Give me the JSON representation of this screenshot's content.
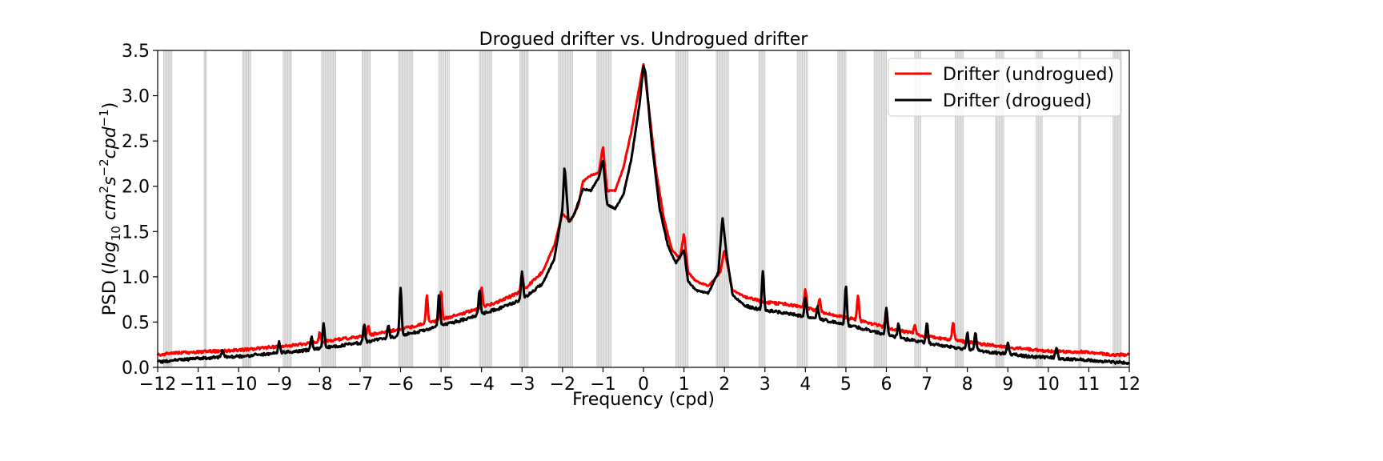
{
  "chart_data": {
    "type": "line",
    "title": "Drogued drifter vs. Undrogued drifter",
    "xlabel": "Frequency (cpd)",
    "ylabel_parts": {
      "pre": "PSD (",
      "log": "log",
      "sub10": "10",
      "cm": " cm",
      "sup2": "2",
      "s": "s",
      "supm2": "−2",
      "cpd": "cpd",
      "supm1": "−1",
      "post": ")"
    },
    "xlim": [
      -12,
      12
    ],
    "ylim": [
      0,
      3.5
    ],
    "xticks": [
      -12,
      -11,
      -10,
      -9,
      -8,
      -7,
      -6,
      -5,
      -4,
      -3,
      -2,
      -1,
      0,
      1,
      2,
      3,
      4,
      5,
      6,
      7,
      8,
      9,
      10,
      11,
      12
    ],
    "xtick_labels": [
      "−12",
      "−11",
      "−10",
      "−9",
      "−8",
      "−7",
      "−6",
      "−5",
      "−4",
      "−3",
      "−2",
      "−1",
      "0",
      "1",
      "2",
      "3",
      "4",
      "5",
      "6",
      "7",
      "8",
      "9",
      "10",
      "11",
      "12"
    ],
    "yticks": [
      0.0,
      0.5,
      1.0,
      1.5,
      2.0,
      2.5,
      3.0,
      3.5
    ],
    "ytick_labels": [
      "0.0",
      "0.5",
      "1.0",
      "1.5",
      "2.0",
      "2.5",
      "3.0",
      "3.5"
    ],
    "legend_position": "top-right",
    "series": [
      {
        "name": "Drifter (undrogued)",
        "color": "#ff0000",
        "base": {
          "floor": 0.13,
          "w_mid": 0.05,
          "w_far": 0.02,
          "hw_far": 2.2,
          "near": [
            [
              0.0,
              3.25,
              0.13
            ]
          ],
          "spikes": [
            [
              -1.0,
              0.2,
              0.04
            ],
            [
              1.0,
              0.35,
              0.04
            ],
            [
              2.0,
              0.3,
              0.04
            ],
            [
              -2.0,
              0.12,
              0.05
            ]
          ],
          "plateau": [
            -1.35,
            0.12,
            0.5
          ]
        },
        "points": [
          [
            -12.0,
            0.14
          ],
          [
            -11.5,
            0.16
          ],
          [
            -11.0,
            0.17
          ],
          [
            -10.5,
            0.18
          ],
          [
            -10.0,
            0.19
          ],
          [
            -9.5,
            0.21
          ],
          [
            -9.0,
            0.23
          ],
          [
            -8.5,
            0.25
          ],
          [
            -8.0,
            0.28
          ],
          [
            -7.5,
            0.31
          ],
          [
            -7.0,
            0.34
          ],
          [
            -6.5,
            0.38
          ],
          [
            -6.0,
            0.42
          ],
          [
            -5.5,
            0.47
          ],
          [
            -5.0,
            0.53
          ],
          [
            -4.5,
            0.59
          ],
          [
            -4.0,
            0.66
          ],
          [
            -3.5,
            0.74
          ],
          [
            -3.0,
            0.84
          ],
          [
            -2.5,
            1.05
          ],
          [
            -2.2,
            1.35
          ],
          [
            -2.0,
            1.7
          ],
          [
            -1.9,
            1.65
          ],
          [
            -1.8,
            1.62
          ],
          [
            -1.6,
            1.8
          ],
          [
            -1.5,
            2.05
          ],
          [
            -1.3,
            2.12
          ],
          [
            -1.1,
            2.15
          ],
          [
            -1.0,
            2.45
          ],
          [
            -0.9,
            1.95
          ],
          [
            -0.7,
            1.95
          ],
          [
            -0.5,
            2.2
          ],
          [
            -0.3,
            2.6
          ],
          [
            -0.1,
            3.1
          ],
          [
            0.0,
            3.35
          ],
          [
            0.1,
            3.0
          ],
          [
            0.3,
            2.2
          ],
          [
            0.5,
            1.65
          ],
          [
            0.7,
            1.3
          ],
          [
            0.9,
            1.2
          ],
          [
            1.0,
            1.48
          ],
          [
            1.1,
            1.05
          ],
          [
            1.3,
            0.95
          ],
          [
            1.6,
            0.9
          ],
          [
            1.9,
            1.05
          ],
          [
            2.0,
            1.3
          ],
          [
            2.2,
            0.85
          ],
          [
            2.5,
            0.78
          ],
          [
            3.0,
            0.72
          ],
          [
            3.5,
            0.7
          ],
          [
            4.0,
            0.66
          ],
          [
            4.5,
            0.6
          ],
          [
            5.0,
            0.55
          ],
          [
            5.5,
            0.5
          ],
          [
            6.0,
            0.44
          ],
          [
            6.5,
            0.39
          ],
          [
            7.0,
            0.34
          ],
          [
            7.5,
            0.31
          ],
          [
            8.0,
            0.28
          ],
          [
            8.5,
            0.25
          ],
          [
            9.0,
            0.22
          ],
          [
            9.5,
            0.2
          ],
          [
            10.0,
            0.18
          ],
          [
            10.5,
            0.17
          ],
          [
            11.0,
            0.17
          ],
          [
            11.5,
            0.14
          ],
          [
            12.0,
            0.14
          ]
        ]
      },
      {
        "name": "Drifter (drogued)",
        "color": "#000000",
        "points": [
          [
            -12.0,
            0.06
          ],
          [
            -11.5,
            0.08
          ],
          [
            -11.0,
            0.1
          ],
          [
            -10.5,
            0.11
          ],
          [
            -10.0,
            0.12
          ],
          [
            -9.5,
            0.14
          ],
          [
            -9.0,
            0.16
          ],
          [
            -8.5,
            0.18
          ],
          [
            -8.0,
            0.21
          ],
          [
            -7.5,
            0.24
          ],
          [
            -7.0,
            0.27
          ],
          [
            -6.5,
            0.31
          ],
          [
            -6.0,
            0.35
          ],
          [
            -5.5,
            0.4
          ],
          [
            -5.0,
            0.46
          ],
          [
            -4.5,
            0.52
          ],
          [
            -4.0,
            0.59
          ],
          [
            -3.5,
            0.66
          ],
          [
            -3.0,
            0.75
          ],
          [
            -2.5,
            0.92
          ],
          [
            -2.2,
            1.2
          ],
          [
            -2.0,
            1.75
          ],
          [
            -1.95,
            2.24
          ],
          [
            -1.85,
            1.6
          ],
          [
            -1.7,
            1.7
          ],
          [
            -1.5,
            1.97
          ],
          [
            -1.3,
            1.95
          ],
          [
            -1.1,
            2.1
          ],
          [
            -1.0,
            2.3
          ],
          [
            -0.9,
            1.8
          ],
          [
            -0.7,
            1.75
          ],
          [
            -0.5,
            1.9
          ],
          [
            -0.3,
            2.3
          ],
          [
            -0.1,
            2.9
          ],
          [
            0.0,
            3.33
          ],
          [
            0.05,
            3.25
          ],
          [
            0.2,
            2.5
          ],
          [
            0.4,
            1.75
          ],
          [
            0.6,
            1.35
          ],
          [
            0.8,
            1.15
          ],
          [
            1.0,
            1.3
          ],
          [
            1.1,
            0.95
          ],
          [
            1.3,
            0.85
          ],
          [
            1.6,
            0.82
          ],
          [
            1.85,
            1.05
          ],
          [
            1.95,
            1.66
          ],
          [
            2.05,
            1.25
          ],
          [
            2.2,
            0.8
          ],
          [
            2.5,
            0.68
          ],
          [
            3.0,
            0.63
          ],
          [
            3.5,
            0.6
          ],
          [
            4.0,
            0.56
          ],
          [
            4.5,
            0.52
          ],
          [
            5.0,
            0.47
          ],
          [
            5.5,
            0.42
          ],
          [
            6.0,
            0.36
          ],
          [
            6.5,
            0.31
          ],
          [
            7.0,
            0.27
          ],
          [
            7.5,
            0.23
          ],
          [
            8.0,
            0.2
          ],
          [
            8.5,
            0.17
          ],
          [
            9.0,
            0.15
          ],
          [
            9.5,
            0.12
          ],
          [
            10.0,
            0.11
          ],
          [
            10.5,
            0.09
          ],
          [
            11.0,
            0.08
          ],
          [
            11.5,
            0.06
          ],
          [
            12.0,
            0.05
          ]
        ]
      }
    ],
    "peaks": [
      {
        "series": 1,
        "x": -10.4,
        "h": 0.08
      },
      {
        "series": 1,
        "x": -9.0,
        "h": 0.12
      },
      {
        "series": 1,
        "x": -8.2,
        "h": 0.14
      },
      {
        "series": 1,
        "x": -7.9,
        "h": 0.27
      },
      {
        "series": 1,
        "x": -6.9,
        "h": 0.2
      },
      {
        "series": 1,
        "x": -6.3,
        "h": 0.14
      },
      {
        "series": 1,
        "x": -6.0,
        "h": 0.53
      },
      {
        "series": 1,
        "x": -5.05,
        "h": 0.35
      },
      {
        "series": 1,
        "x": -4.05,
        "h": 0.26
      },
      {
        "series": 1,
        "x": -3.0,
        "h": 0.3
      },
      {
        "series": 1,
        "x": 2.95,
        "h": 0.44
      },
      {
        "series": 1,
        "x": 4.0,
        "h": 0.2
      },
      {
        "series": 1,
        "x": 4.3,
        "h": 0.13
      },
      {
        "series": 1,
        "x": 5.0,
        "h": 0.43
      },
      {
        "series": 1,
        "x": 6.0,
        "h": 0.3
      },
      {
        "series": 1,
        "x": 6.3,
        "h": 0.15
      },
      {
        "series": 1,
        "x": 7.0,
        "h": 0.23
      },
      {
        "series": 1,
        "x": 8.0,
        "h": 0.18
      },
      {
        "series": 1,
        "x": 8.2,
        "h": 0.2
      },
      {
        "series": 1,
        "x": 9.0,
        "h": 0.13
      },
      {
        "series": 1,
        "x": 10.2,
        "h": 0.12
      },
      {
        "series": 0,
        "x": -8.0,
        "h": 0.1
      },
      {
        "series": 0,
        "x": -6.8,
        "h": 0.1
      },
      {
        "series": 0,
        "x": -5.35,
        "h": 0.3
      },
      {
        "series": 0,
        "x": -5.0,
        "h": 0.3
      },
      {
        "series": 0,
        "x": -4.0,
        "h": 0.23
      },
      {
        "series": 0,
        "x": -3.0,
        "h": 0.2
      },
      {
        "series": 0,
        "x": 4.0,
        "h": 0.2
      },
      {
        "series": 0,
        "x": 4.35,
        "h": 0.15
      },
      {
        "series": 0,
        "x": 5.3,
        "h": 0.27
      },
      {
        "series": 0,
        "x": 6.0,
        "h": 0.2
      },
      {
        "series": 0,
        "x": 7.65,
        "h": 0.2
      },
      {
        "series": 0,
        "x": 6.7,
        "h": 0.1
      }
    ],
    "shaded_bands": [
      [
        -11.85,
        -11.65
      ],
      [
        -10.85,
        -10.8
      ],
      [
        -9.9,
        -9.7
      ],
      [
        -8.9,
        -8.7
      ],
      [
        -7.95,
        -7.6
      ],
      [
        -6.95,
        -6.75
      ],
      [
        -6.05,
        -5.7
      ],
      [
        -5.05,
        -4.8
      ],
      [
        -4.05,
        -3.75
      ],
      [
        -3.05,
        -2.85
      ],
      [
        -2.1,
        -1.75
      ],
      [
        -1.15,
        -0.8
      ],
      [
        0.8,
        1.1
      ],
      [
        1.8,
        2.1
      ],
      [
        2.85,
        3.0
      ],
      [
        3.8,
        4.05
      ],
      [
        4.8,
        5.0
      ],
      [
        5.7,
        6.0
      ],
      [
        6.7,
        6.85
      ],
      [
        7.7,
        7.9
      ],
      [
        8.7,
        8.9
      ],
      [
        9.7,
        9.85
      ],
      [
        10.75,
        10.8
      ],
      [
        11.6,
        11.8
      ]
    ]
  }
}
